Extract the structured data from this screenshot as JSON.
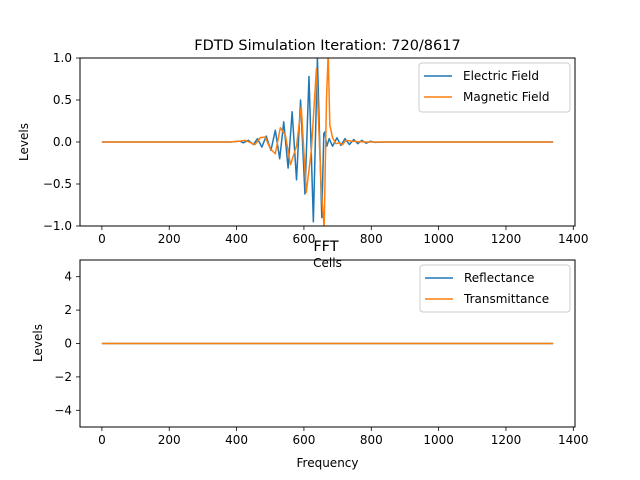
{
  "chart_data": [
    {
      "type": "line",
      "title": "FDTD Simulation Iteration: 720/8617",
      "xlabel": "Cells",
      "ylabel": "Levels",
      "xlim": [
        -65,
        1405
      ],
      "ylim": [
        -1.0,
        1.0
      ],
      "xticks": [
        0,
        200,
        400,
        600,
        800,
        1000,
        1200,
        1400
      ],
      "yticks": [
        -1.0,
        -0.5,
        0.0,
        0.5,
        1.0
      ],
      "ytick_labels": [
        "−1.0",
        "−0.5",
        "0.0",
        "0.5",
        "1.0"
      ],
      "legend": "top-right",
      "grid": false,
      "series": [
        {
          "name": "Electric Field",
          "color": "#1f77b4",
          "x": [
            0,
            380,
            395,
            410,
            420,
            435,
            450,
            462,
            475,
            488,
            502,
            515,
            528,
            540,
            553,
            565,
            578,
            590,
            603,
            615,
            628,
            640,
            653,
            659,
            662,
            668,
            675,
            685,
            698,
            710,
            722,
            735,
            748,
            760,
            772,
            785,
            798,
            810,
            840,
            1340
          ],
          "y": [
            0,
            0,
            0.005,
            0.01,
            -0.01,
            0.02,
            -0.03,
            0.04,
            -0.06,
            0.07,
            -0.1,
            0.14,
            -0.2,
            0.24,
            -0.31,
            0.36,
            -0.45,
            0.5,
            -0.62,
            0.78,
            -0.95,
            1.0,
            -0.9,
            0.1,
            0.12,
            -0.05,
            0.04,
            -0.05,
            0.05,
            -0.04,
            0.04,
            -0.03,
            0.03,
            -0.02,
            0.02,
            -0.015,
            0.01,
            -0.005,
            0,
            0
          ]
        },
        {
          "name": "Magnetic Field",
          "color": "#ff7f0e",
          "x": [
            0,
            380,
            395,
            410,
            425,
            440,
            455,
            470,
            485,
            500,
            515,
            530,
            545,
            560,
            578,
            592,
            607,
            622,
            637,
            652,
            660,
            667,
            672,
            677,
            685,
            695,
            705,
            715,
            725,
            740,
            760,
            780,
            1340
          ],
          "y": [
            0,
            0,
            0.005,
            0.01,
            0.02,
            -0.005,
            -0.03,
            0.05,
            0.06,
            -0.08,
            -0.14,
            0.17,
            0.08,
            -0.27,
            -0.05,
            0.42,
            -0.6,
            -0.1,
            0.87,
            -0.6,
            -1.02,
            0.5,
            1.05,
            0.2,
            0.05,
            -0.02,
            -0.01,
            -0.03,
            0.02,
            0.01,
            0.005,
            0,
            0
          ]
        }
      ]
    },
    {
      "type": "line",
      "title": "FFT",
      "xlabel": "Frequency",
      "ylabel": "Levels",
      "xlim": [
        -65,
        1405
      ],
      "ylim": [
        -5,
        5
      ],
      "xticks": [
        0,
        200,
        400,
        600,
        800,
        1000,
        1200,
        1400
      ],
      "yticks": [
        -4,
        -2,
        0,
        2,
        4
      ],
      "ytick_labels": [
        "−4",
        "−2",
        "0",
        "2",
        "4"
      ],
      "legend": "top-right",
      "grid": false,
      "series": [
        {
          "name": "Reflectance",
          "color": "#1f77b4",
          "x": [
            0,
            1340
          ],
          "y": [
            0,
            0
          ]
        },
        {
          "name": "Transmittance",
          "color": "#ff7f0e",
          "x": [
            0,
            1340
          ],
          "y": [
            0,
            0
          ]
        }
      ]
    }
  ]
}
